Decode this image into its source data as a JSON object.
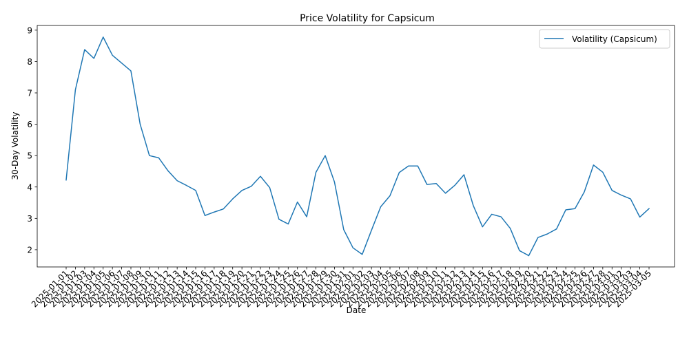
{
  "chart_data": {
    "type": "line",
    "title": "Price Volatility for Capsicum",
    "xlabel": "Date",
    "ylabel": "30-Day Volatility",
    "ylim": [
      1.45,
      9.15
    ],
    "yticks": [
      2,
      3,
      4,
      5,
      6,
      7,
      8,
      9
    ],
    "grid": false,
    "legend_position": "top-right",
    "x": [
      "2025-01-01",
      "2025-01-02",
      "2025-01-03",
      "2025-01-04",
      "2025-01-05",
      "2025-01-06",
      "2025-01-07",
      "2025-01-08",
      "2025-01-09",
      "2025-01-10",
      "2025-01-11",
      "2025-01-12",
      "2025-01-13",
      "2025-01-14",
      "2025-01-15",
      "2025-01-16",
      "2025-01-17",
      "2025-01-18",
      "2025-01-19",
      "2025-01-20",
      "2025-01-21",
      "2025-01-22",
      "2025-01-23",
      "2025-01-24",
      "2025-01-25",
      "2025-01-26",
      "2025-01-27",
      "2025-01-28",
      "2025-01-29",
      "2025-01-30",
      "2025-01-31",
      "2025-02-01",
      "2025-02-02",
      "2025-02-03",
      "2025-02-04",
      "2025-02-05",
      "2025-02-06",
      "2025-02-07",
      "2025-02-08",
      "2025-02-09",
      "2025-02-10",
      "2025-02-11",
      "2025-02-12",
      "2025-02-13",
      "2025-02-14",
      "2025-02-15",
      "2025-02-16",
      "2025-02-17",
      "2025-02-18",
      "2025-02-19",
      "2025-02-20",
      "2025-02-21",
      "2025-02-22",
      "2025-02-23",
      "2025-02-24",
      "2025-02-25",
      "2025-02-26",
      "2025-02-27",
      "2025-02-28",
      "2025-03-01",
      "2025-03-02",
      "2025-03-03",
      "2025-03-04",
      "2025-03-05"
    ],
    "series": [
      {
        "name": "Volatility (Capsicum)",
        "color": "#1f77b4",
        "values": [
          4.22,
          7.1,
          8.38,
          8.1,
          8.78,
          8.2,
          7.95,
          7.7,
          6.0,
          5.0,
          4.93,
          4.52,
          4.2,
          4.05,
          3.89,
          3.09,
          3.2,
          3.3,
          3.62,
          3.89,
          4.02,
          4.34,
          3.98,
          2.97,
          2.82,
          3.52,
          3.05,
          4.47,
          5.0,
          4.16,
          2.64,
          2.06,
          1.85,
          2.62,
          3.37,
          3.72,
          4.46,
          4.67,
          4.67,
          4.08,
          4.11,
          3.8,
          4.05,
          4.39,
          3.41,
          2.73,
          3.13,
          3.05,
          2.68,
          1.97,
          1.81,
          2.39,
          2.5,
          2.66,
          3.27,
          3.31,
          3.84,
          4.7,
          4.47,
          3.89,
          3.74,
          3.62,
          3.04,
          3.31
        ]
      }
    ]
  }
}
